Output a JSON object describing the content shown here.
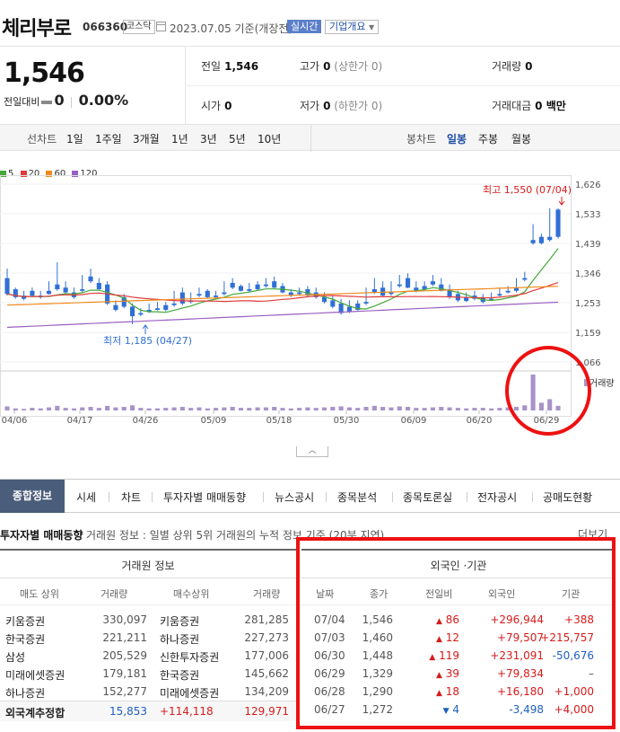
{
  "header": {
    "stock_name": "체리부로",
    "stock_code": "066360",
    "market_badge": "코스닥",
    "date_text": "2023.07.05",
    "date_suffix": "기준(개장전)",
    "realtime_label": "실시간",
    "company_info_label": "기업개요"
  },
  "price": {
    "current": "1,546",
    "change_label": "전일대비",
    "change_value": "0",
    "change_pct": "0.00%"
  },
  "stats": {
    "prev_close": {
      "label": "전일",
      "value": "1,546"
    },
    "high": {
      "label": "고가",
      "value": "0",
      "sub": "(상한가 0)"
    },
    "volume": {
      "label": "거래량",
      "value": "0"
    },
    "open": {
      "label": "시가",
      "value": "0"
    },
    "low": {
      "label": "저가",
      "value": "0",
      "sub": "(하한가 0)"
    },
    "amount": {
      "label": "거래대금",
      "value": "0 백만"
    }
  },
  "chart_tabs": {
    "line_chart": "선차트",
    "periods": [
      "1일",
      "1주일",
      "3개월",
      "1년",
      "3년",
      "5년",
      "10년"
    ],
    "candle_chart": "봉차트",
    "candle_periods": [
      "일봉",
      "주봉",
      "월봉"
    ],
    "active_candle": "일봉"
  },
  "chart_data": {
    "type": "candlestick",
    "legend": [
      {
        "name": "5",
        "color": "#44a93a"
      },
      {
        "name": "20",
        "color": "#e23a3a"
      },
      {
        "name": "60",
        "color": "#f08a1c"
      },
      {
        "name": "120",
        "color": "#9a5fc2"
      }
    ],
    "y_ticks": [
      "1,626",
      "1,533",
      "1,439",
      "1,346",
      "1,253",
      "1,159",
      "1,066"
    ],
    "ylim": [
      1066,
      1626
    ],
    "x_ticks": [
      "04/06",
      "04/17",
      "04/26",
      "05/09",
      "05/18",
      "05/30",
      "06/09",
      "06/20",
      "06/29"
    ],
    "high_annotation": "최고 1,550 (07/04)",
    "low_annotation": "최저 1,185 (04/27)",
    "volume_label": "거래량",
    "up_color": "#e23a3a",
    "down_color": "#2f6fd6",
    "candles": [
      [
        1330,
        1360,
        1280,
        1275
      ],
      [
        1295,
        1300,
        1270,
        1265
      ],
      [
        1275,
        1290,
        1265,
        1260
      ],
      [
        1290,
        1300,
        1275,
        1272
      ],
      [
        1275,
        1290,
        1270,
        1265
      ],
      [
        1290,
        1320,
        1280,
        1278
      ],
      [
        1310,
        1380,
        1295,
        1290
      ],
      [
        1300,
        1320,
        1285,
        1280
      ],
      [
        1285,
        1300,
        1270,
        1265
      ],
      [
        1295,
        1340,
        1290,
        1285
      ],
      [
        1335,
        1360,
        1320,
        1315
      ],
      [
        1315,
        1330,
        1295,
        1292
      ],
      [
        1310,
        1320,
        1250,
        1245
      ],
      [
        1245,
        1260,
        1230,
        1225
      ],
      [
        1270,
        1280,
        1240,
        1235
      ],
      [
        1240,
        1250,
        1210,
        1185
      ],
      [
        1220,
        1235,
        1215,
        1210
      ],
      [
        1230,
        1250,
        1225,
        1220
      ],
      [
        1235,
        1255,
        1230,
        1228
      ],
      [
        1245,
        1255,
        1230,
        1225
      ],
      [
        1250,
        1290,
        1245,
        1240
      ],
      [
        1285,
        1300,
        1250,
        1245
      ],
      [
        1260,
        1285,
        1255,
        1250
      ],
      [
        1280,
        1300,
        1275,
        1270
      ],
      [
        1290,
        1295,
        1270,
        1268
      ],
      [
        1275,
        1290,
        1270,
        1265
      ],
      [
        1285,
        1320,
        1280,
        1275
      ],
      [
        1315,
        1330,
        1300,
        1295
      ],
      [
        1305,
        1310,
        1290,
        1288
      ],
      [
        1295,
        1315,
        1290,
        1285
      ],
      [
        1310,
        1320,
        1295,
        1290
      ],
      [
        1310,
        1330,
        1305,
        1300
      ],
      [
        1320,
        1335,
        1300,
        1298
      ],
      [
        1305,
        1315,
        1285,
        1282
      ],
      [
        1285,
        1295,
        1275,
        1270
      ],
      [
        1285,
        1300,
        1280,
        1275
      ],
      [
        1295,
        1305,
        1275,
        1270
      ],
      [
        1285,
        1300,
        1270,
        1265
      ],
      [
        1270,
        1285,
        1255,
        1250
      ],
      [
        1260,
        1275,
        1240,
        1235
      ],
      [
        1250,
        1265,
        1220,
        1215
      ],
      [
        1240,
        1260,
        1225,
        1220
      ],
      [
        1250,
        1260,
        1230,
        1228
      ],
      [
        1255,
        1300,
        1250,
        1245
      ],
      [
        1295,
        1330,
        1285,
        1280
      ],
      [
        1300,
        1320,
        1275,
        1270
      ],
      [
        1285,
        1320,
        1280,
        1275
      ],
      [
        1310,
        1340,
        1305,
        1300
      ],
      [
        1330,
        1345,
        1300,
        1298
      ],
      [
        1300,
        1320,
        1290,
        1285
      ],
      [
        1305,
        1320,
        1295,
        1290
      ],
      [
        1320,
        1340,
        1310,
        1305
      ],
      [
        1310,
        1330,
        1290,
        1288
      ],
      [
        1295,
        1310,
        1270,
        1265
      ],
      [
        1280,
        1290,
        1260,
        1255
      ],
      [
        1270,
        1285,
        1258,
        1255
      ],
      [
        1275,
        1290,
        1265,
        1260
      ],
      [
        1270,
        1280,
        1255,
        1250
      ],
      [
        1265,
        1285,
        1260,
        1258
      ],
      [
        1280,
        1300,
        1275,
        1272
      ],
      [
        1290,
        1305,
        1285,
        1282
      ],
      [
        1300,
        1330,
        1290,
        1285
      ],
      [
        1330,
        1350,
        1325,
        1320
      ],
      [
        1450,
        1500,
        1440,
        1435
      ],
      [
        1460,
        1470,
        1440,
        1436
      ],
      [
        1460,
        1550,
        1450,
        1445
      ],
      [
        1546,
        1550,
        1460,
        1455
      ]
    ],
    "volumes": [
      8,
      4,
      3,
      5,
      4,
      6,
      9,
      5,
      4,
      6,
      7,
      5,
      9,
      6,
      7,
      10,
      5,
      4,
      4,
      5,
      6,
      7,
      5,
      6,
      4,
      5,
      6,
      7,
      5,
      5,
      6,
      6,
      7,
      5,
      4,
      5,
      6,
      5,
      6,
      7,
      8,
      6,
      5,
      7,
      9,
      7,
      6,
      8,
      7,
      5,
      5,
      6,
      7,
      6,
      5,
      4,
      5,
      5,
      4,
      5,
      6,
      7,
      10,
      70,
      15,
      22,
      9
    ],
    "up_indices_note": ""
  },
  "main_tabs": [
    "종합정보",
    "시세",
    "차트",
    "투자자별 매매동향",
    "뉴스공시",
    "종목분석",
    "종목토론실",
    "전자공시",
    "공매도현황"
  ],
  "section": {
    "title": "투자자별 매매동향",
    "desc_a": "거래원 정보",
    "desc_b": ": 일별 상위 5위 거래원의 누적 정보 기준 (20분 지연)",
    "more": "더보기"
  },
  "broker": {
    "title": "거래원 정보",
    "headers": [
      "매도 상위",
      "거래량",
      "매수상위",
      "거래량"
    ],
    "rows": [
      [
        "키움증권",
        "330,097",
        "키움증권",
        "281,285"
      ],
      [
        "한국증권",
        "221,211",
        "하나증권",
        "227,273"
      ],
      [
        "삼성",
        "205,529",
        "신한투자증권",
        "177,006"
      ],
      [
        "미래에셋증권",
        "179,181",
        "한국증권",
        "145,662"
      ],
      [
        "하나증권",
        "152,277",
        "미래에셋증권",
        "134,209"
      ]
    ],
    "foreign_total": {
      "label": "외국계추정합",
      "sell": "15,853",
      "net": "+114,118",
      "buy": "129,971"
    }
  },
  "investor": {
    "title": "외국인 ·기관",
    "headers": [
      "날짜",
      "종가",
      "전일비",
      "외국인",
      "기관"
    ],
    "rows": [
      {
        "date": "07/04",
        "close": "1,546",
        "dir": "up",
        "diff": "86",
        "foreign": "+296,944",
        "inst": "+388"
      },
      {
        "date": "07/03",
        "close": "1,460",
        "dir": "up",
        "diff": "12",
        "foreign": "+79,507",
        "inst": "+215,757"
      },
      {
        "date": "06/30",
        "close": "1,448",
        "dir": "up",
        "diff": "119",
        "foreign": "+231,091",
        "inst": "-50,676"
      },
      {
        "date": "06/29",
        "close": "1,329",
        "dir": "up",
        "diff": "39",
        "foreign": "+79,834",
        "inst": "–"
      },
      {
        "date": "06/28",
        "close": "1,290",
        "dir": "up",
        "diff": "18",
        "foreign": "+16,180",
        "inst": "+1,000"
      },
      {
        "date": "06/27",
        "close": "1,272",
        "dir": "down",
        "diff": "4",
        "foreign": "-3,498",
        "inst": "+4,000"
      }
    ]
  }
}
